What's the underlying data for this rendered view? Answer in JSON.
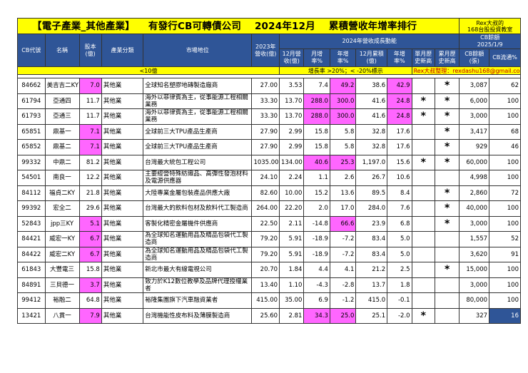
{
  "title": {
    "t1": "【電子產業_其他產業】",
    "t2": "有發行CB可轉債公司",
    "t3": "2024年12月",
    "t4": "累積營收年增率排行"
  },
  "rex_badge": {
    "line1": "Rex大叔的",
    "line2": "168台股投資教室"
  },
  "cb_remain_header": {
    "line1": "CB餘額",
    "line2": "2025/1/9"
  },
  "headers": {
    "code": "CB代號",
    "name": "名稱",
    "capital": "股本(億)",
    "industry": "產業分類",
    "market": "市場地位",
    "rev2023": "2023年營收(億)",
    "growth_group": "2024年營收成長動能",
    "dec_rev": "12月營收(億)",
    "mom": "月增率%",
    "yoy": "年增率%",
    "dec_cum": "12月累積(億)",
    "cum_yoy": "年增率%",
    "single_high": "單月歷史新高",
    "cum_high": "累月歷史新高",
    "cb_amount": "CB餘額(張)",
    "cb_flow": "CB流通%"
  },
  "legend": {
    "under10": "<10億",
    "growth_note": "增長率 >20%；< -20%標示",
    "rex_note": "Rex大叔整理：rexdashu168@gmail.com"
  },
  "rows": [
    {
      "code": "84662",
      "name": "美吉吉二KY",
      "capital": "7.0",
      "industry": "其他業",
      "market": "全球知名塑膠地磚製造廠商",
      "rev2023": "27.00",
      "dec_rev": "3.53",
      "mom": "7.4",
      "yoy": "49.2",
      "dec_cum": "38.6",
      "cum_yoy": "42.9",
      "single_high": "",
      "cum_high": "*",
      "cb_amount": "3,087",
      "cb_flow": "62"
    },
    {
      "code": "61794",
      "name": "亞通四",
      "capital": "11.7",
      "industry": "其他業",
      "market": "海外以菲律賓為主，從事能源工程相關業務",
      "rev2023": "33.30",
      "dec_rev": "13.70",
      "mom": "288.0",
      "yoy": "300.0",
      "dec_cum": "41.6",
      "cum_yoy": "24.8",
      "single_high": "*",
      "cum_high": "*",
      "cb_amount": "6,000",
      "cb_flow": "100"
    },
    {
      "code": "61793",
      "name": "亞通三",
      "capital": "11.7",
      "industry": "其他業",
      "market": "海外以菲律賓為主，從事能源工程相關業務",
      "rev2023": "33.30",
      "dec_rev": "13.70",
      "mom": "288.0",
      "yoy": "300.0",
      "dec_cum": "41.6",
      "cum_yoy": "24.8",
      "single_high": "*",
      "cum_high": "*",
      "cb_amount": "3,000",
      "cb_flow": "100"
    },
    {
      "code": "65851",
      "name": "鼎基一",
      "capital": "7.1",
      "industry": "其他業",
      "market": "全球前三大TPU產品生產商",
      "rev2023": "27.90",
      "dec_rev": "2.99",
      "mom": "15.8",
      "yoy": "5.8",
      "dec_cum": "32.8",
      "cum_yoy": "17.6",
      "single_high": "",
      "cum_high": "*",
      "cb_amount": "3,417",
      "cb_flow": "68"
    },
    {
      "code": "65852",
      "name": "鼎基二",
      "capital": "7.1",
      "industry": "其他業",
      "market": "全球前三大TPU產品生產商",
      "rev2023": "27.90",
      "dec_rev": "2.99",
      "mom": "15.8",
      "yoy": "5.8",
      "dec_cum": "32.8",
      "cum_yoy": "17.6",
      "single_high": "",
      "cum_high": "*",
      "cb_amount": "929",
      "cb_flow": "46"
    },
    {
      "code": "99332",
      "name": "中鼎二",
      "capital": "81.2",
      "industry": "其他業",
      "market": "台灣最大統包工程公司",
      "rev2023": "1035.00",
      "dec_rev": "134.00",
      "mom": "40.6",
      "yoy": "25.3",
      "dec_cum": "1,197.0",
      "cum_yoy": "15.6",
      "single_high": "*",
      "cum_high": "*",
      "cb_amount": "60,000",
      "cb_flow": "100"
    },
    {
      "code": "54501",
      "name": "南良一",
      "capital": "12.2",
      "industry": "其他業",
      "market": "主要經營特殊紡織品、高彈性發泡材料及電源供應器",
      "rev2023": "24.10",
      "dec_rev": "2.24",
      "mom": "1.1",
      "yoy": "2.6",
      "dec_cum": "26.7",
      "cum_yoy": "10.6",
      "single_high": "",
      "cum_high": "",
      "cb_amount": "4,998",
      "cb_flow": "100"
    },
    {
      "code": "84112",
      "name": "福貞二KY",
      "capital": "21.8",
      "industry": "其他業",
      "market": "大陸專業金屬包裝產品供應大廠",
      "rev2023": "82.60",
      "dec_rev": "10.00",
      "mom": "15.2",
      "yoy": "13.6",
      "dec_cum": "89.5",
      "cum_yoy": "8.4",
      "single_high": "",
      "cum_high": "*",
      "cb_amount": "2,860",
      "cb_flow": "72"
    },
    {
      "code": "99392",
      "name": "宏全二",
      "capital": "29.6",
      "industry": "其他業",
      "market": "台灣最大的飲料包材及飲料代工製造商",
      "rev2023": "264.00",
      "dec_rev": "22.20",
      "mom": "2.0",
      "yoy": "17.0",
      "dec_cum": "284.0",
      "cum_yoy": "7.6",
      "single_high": "",
      "cum_high": "*",
      "cb_amount": "40,000",
      "cb_flow": "100"
    },
    {
      "code": "52843",
      "name": "jpp三KY",
      "capital": "5.1",
      "industry": "其他業",
      "market": "客製化精密金屬機件供應商",
      "rev2023": "22.50",
      "dec_rev": "2.11",
      "mom": "-14.8",
      "yoy": "66.6",
      "dec_cum": "23.9",
      "cum_yoy": "6.8",
      "single_high": "",
      "cum_high": "*",
      "cb_amount": "3,000",
      "cb_flow": "100"
    },
    {
      "code": "84421",
      "name": "威宏一KY",
      "capital": "6.7",
      "industry": "其他業",
      "market": "為全球知名運動用品及精品包袋代工製造商",
      "rev2023": "79.20",
      "dec_rev": "5.91",
      "mom": "-18.9",
      "yoy": "-7.2",
      "dec_cum": "83.4",
      "cum_yoy": "5.0",
      "single_high": "",
      "cum_high": "",
      "cb_amount": "1,557",
      "cb_flow": "52"
    },
    {
      "code": "84422",
      "name": "威宏二KY",
      "capital": "6.7",
      "industry": "其他業",
      "market": "為全球知名運動用品及精品包袋代工製造商",
      "rev2023": "79.20",
      "dec_rev": "5.91",
      "mom": "-18.9",
      "yoy": "-7.2",
      "dec_cum": "83.4",
      "cum_yoy": "5.0",
      "single_high": "",
      "cum_high": "",
      "cb_amount": "3,620",
      "cb_flow": "91"
    },
    {
      "code": "61843",
      "name": "大豐電三",
      "capital": "15.8",
      "industry": "其他業",
      "market": "新北市最大有線電視公司",
      "rev2023": "20.70",
      "dec_rev": "1.84",
      "mom": "4.4",
      "yoy": "4.1",
      "dec_cum": "21.2",
      "cum_yoy": "2.5",
      "single_high": "",
      "cum_high": "*",
      "cb_amount": "15,000",
      "cb_flow": "100"
    },
    {
      "code": "84891",
      "name": "三貝德一",
      "capital": "3.7",
      "industry": "其他業",
      "market": "致力於K12數位教學及品牌代理授權業者",
      "rev2023": "13.40",
      "dec_rev": "1.10",
      "mom": "-4.3",
      "yoy": "-2.8",
      "dec_cum": "13.7",
      "cum_yoy": "1.8",
      "single_high": "",
      "cum_high": "",
      "cb_amount": "3,000",
      "cb_flow": "100"
    },
    {
      "code": "99412",
      "name": "裕融二",
      "capital": "64.8",
      "industry": "其他業",
      "market": "裕隆集團旗下汽車融資業者",
      "rev2023": "415.00",
      "dec_rev": "35.00",
      "mom": "6.9",
      "yoy": "-1.2",
      "dec_cum": "415.0",
      "cum_yoy": "-0.1",
      "single_high": "",
      "cum_high": "",
      "cb_amount": "80,000",
      "cb_flow": "100"
    },
    {
      "code": "13421",
      "name": "八貫一",
      "capital": "7.9",
      "industry": "其他業",
      "market": "台灣機能性皮布料及薄膜製造商",
      "rev2023": "25.60",
      "dec_rev": "2.81",
      "mom": "34.3",
      "yoy": "25.0",
      "dec_cum": "25.1",
      "cum_yoy": "-2.0",
      "single_high": "*",
      "cum_high": "",
      "cb_amount": "327",
      "cb_flow": "16"
    }
  ],
  "highlight_color": "#ff66ff",
  "header_color": "#2f5597",
  "title_color": "#ffff00"
}
